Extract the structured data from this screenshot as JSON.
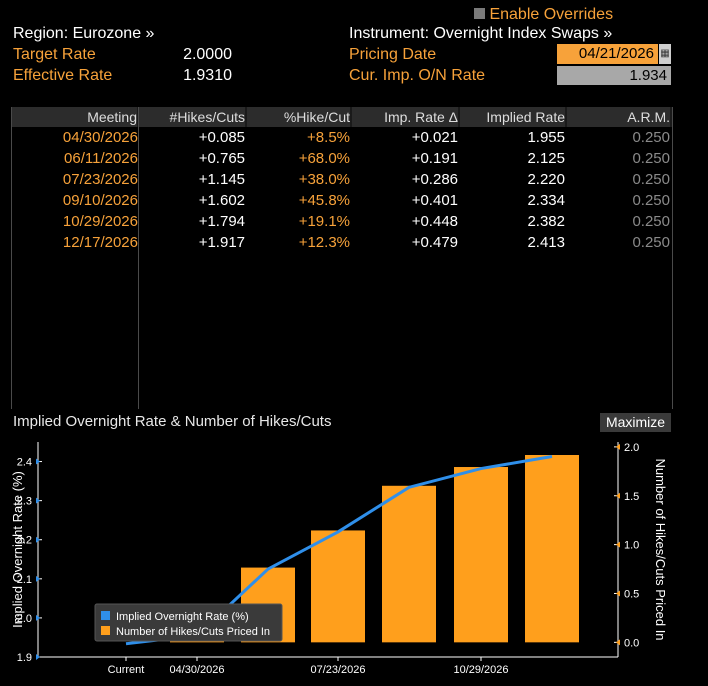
{
  "header": {
    "region_label": "Region: Eurozone »",
    "instrument_label": "Instrument: Overnight Index Swaps »",
    "enable_overrides": "Enable Overrides",
    "target_rate_label": "Target Rate",
    "target_rate_value": "2.0000",
    "effective_rate_label": "Effective Rate",
    "effective_rate_value": "1.9310",
    "pricing_date_label": "Pricing Date",
    "pricing_date_value": "04/21/2026",
    "cur_imp_label": "Cur. Imp. O/N Rate",
    "cur_imp_value": "1.934"
  },
  "table": {
    "columns": [
      "Meeting",
      "#Hikes/Cuts",
      "%Hike/Cut",
      "Imp. Rate Δ",
      "Implied Rate",
      "A.R.M."
    ],
    "rows": [
      {
        "meeting": "04/30/2026",
        "hikes": "+0.085",
        "pct": "+8.5%",
        "delta": "+0.021",
        "implied": "1.955",
        "arm": "0.250"
      },
      {
        "meeting": "06/11/2026",
        "hikes": "+0.765",
        "pct": "+68.0%",
        "delta": "+0.191",
        "implied": "2.125",
        "arm": "0.250"
      },
      {
        "meeting": "07/23/2026",
        "hikes": "+1.145",
        "pct": "+38.0%",
        "delta": "+0.286",
        "implied": "2.220",
        "arm": "0.250"
      },
      {
        "meeting": "09/10/2026",
        "hikes": "+1.602",
        "pct": "+45.8%",
        "delta": "+0.401",
        "implied": "2.334",
        "arm": "0.250"
      },
      {
        "meeting": "10/29/2026",
        "hikes": "+1.794",
        "pct": "+19.1%",
        "delta": "+0.448",
        "implied": "2.382",
        "arm": "0.250"
      },
      {
        "meeting": "12/17/2026",
        "hikes": "+1.917",
        "pct": "+12.3%",
        "delta": "+0.479",
        "implied": "2.413",
        "arm": "0.250"
      }
    ]
  },
  "chart_section": {
    "title": "Implied Overnight Rate & Number of Hikes/Cuts",
    "maximize": "Maximize"
  },
  "colors": {
    "orange": "#f7a23a",
    "line_blue": "#2f8fea",
    "bar": "#ff9f1c"
  },
  "chart_data": {
    "type": "bar",
    "categories": [
      "Current",
      "04/30/2026",
      "06/11/2026",
      "07/23/2026",
      "09/10/2026",
      "10/29/2026",
      "12/17/2026"
    ],
    "x_tick_labels": [
      "Current",
      "04/30/2026",
      "07/23/2026",
      "10/29/2026"
    ],
    "series": [
      {
        "name": "Implied Overnight Rate (%)",
        "type": "line",
        "axis": "left",
        "values": [
          1.934,
          1.955,
          2.125,
          2.22,
          2.334,
          2.382,
          2.413
        ]
      },
      {
        "name": "Number of Hikes/Cuts Priced In",
        "type": "bar",
        "axis": "right",
        "values": [
          null,
          0.085,
          0.765,
          1.145,
          1.602,
          1.794,
          1.917
        ]
      }
    ],
    "ylabel": "Implied Overnight Rate (%)",
    "y2label": "Number of Hikes/Cuts Priced In",
    "ylim": [
      1.9,
      2.45
    ],
    "y2lim": [
      -0.15,
      2.05
    ],
    "y_ticks": [
      "1.9",
      "2.0",
      "2.1",
      "2.2",
      "2.3",
      "2.4"
    ],
    "y2_ticks": [
      "0.0",
      "0.5",
      "1.0",
      "1.5",
      "2.0"
    ],
    "legend_placement": "bottom-left"
  }
}
